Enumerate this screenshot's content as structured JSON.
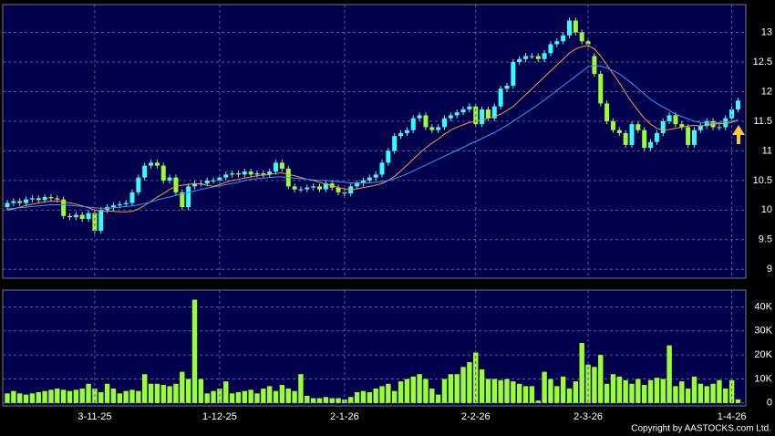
{
  "chart_data": [
    {
      "type": "candlestick",
      "ylim": [
        8.85,
        13.47
      ],
      "yticks": [
        9,
        9.5,
        10,
        10.5,
        11,
        11.5,
        12,
        12.5,
        13
      ],
      "grid": true,
      "up_color": "#33ffff",
      "down_color": "#99ff33",
      "open": [
        10.05,
        10.12,
        10.15,
        10.12,
        10.18,
        10.2,
        10.17,
        10.22,
        10.2,
        10.18,
        9.9,
        9.88,
        9.92,
        9.85,
        9.95,
        9.65,
        10.0,
        10.05,
        10.08,
        10.1,
        10.12,
        10.3,
        10.55,
        10.75,
        10.8,
        10.75,
        10.5,
        10.55,
        10.3,
        10.05,
        10.4,
        10.45,
        10.45,
        10.5,
        10.5,
        10.55,
        10.6,
        10.62,
        10.6,
        10.65,
        10.6,
        10.62,
        10.6,
        10.65,
        10.8,
        10.7,
        10.4,
        10.35,
        10.35,
        10.38,
        10.4,
        10.35,
        10.45,
        10.38,
        10.3,
        10.28,
        10.4,
        10.45,
        10.5,
        10.55,
        10.6,
        10.8,
        11.0,
        11.25,
        11.3,
        11.35,
        11.55,
        11.6,
        11.4,
        11.35,
        11.4,
        11.55,
        11.6,
        11.65,
        11.7,
        11.75,
        11.45,
        11.7,
        11.55,
        11.75,
        12.05,
        12.1,
        12.5,
        12.55,
        12.6,
        12.6,
        12.55,
        12.65,
        12.8,
        12.85,
        12.95,
        13.2,
        13.0,
        12.85,
        12.6,
        12.3,
        11.8,
        11.5,
        11.35,
        11.3,
        11.1,
        11.45,
        11.35,
        11.05,
        11.15,
        11.3,
        11.5,
        11.6,
        11.45,
        11.4,
        11.1,
        11.35,
        11.42,
        11.5,
        11.4,
        11.4,
        11.55,
        11.7
      ],
      "high": [
        10.17,
        10.2,
        10.2,
        10.23,
        10.25,
        10.25,
        10.27,
        10.27,
        10.25,
        10.23,
        9.95,
        9.97,
        9.97,
        10.0,
        10.0,
        10.05,
        10.1,
        10.13,
        10.15,
        10.17,
        10.35,
        10.6,
        10.8,
        10.85,
        10.85,
        10.8,
        10.6,
        10.6,
        10.35,
        10.45,
        10.5,
        10.5,
        10.55,
        10.55,
        10.6,
        10.65,
        10.67,
        10.67,
        10.7,
        10.7,
        10.67,
        10.67,
        10.7,
        10.85,
        10.85,
        10.75,
        10.45,
        10.4,
        10.43,
        10.45,
        10.45,
        10.5,
        10.5,
        10.43,
        10.35,
        10.45,
        10.5,
        10.55,
        10.6,
        10.65,
        10.85,
        11.05,
        11.3,
        11.35,
        11.4,
        11.6,
        11.65,
        11.65,
        11.45,
        11.45,
        11.6,
        11.65,
        11.7,
        11.75,
        11.8,
        11.8,
        11.75,
        11.75,
        11.8,
        12.1,
        12.15,
        12.55,
        12.6,
        12.65,
        12.65,
        12.65,
        12.7,
        12.85,
        12.9,
        13.0,
        13.25,
        13.25,
        13.05,
        12.9,
        12.65,
        12.35,
        11.85,
        11.55,
        11.4,
        11.35,
        11.5,
        11.5,
        11.4,
        11.2,
        11.35,
        11.55,
        11.65,
        11.65,
        11.5,
        11.45,
        11.4,
        11.47,
        11.55,
        11.55,
        11.45,
        11.6,
        11.75,
        11.9
      ],
      "low": [
        10.0,
        10.07,
        10.07,
        10.07,
        10.13,
        10.12,
        10.12,
        10.15,
        10.13,
        9.85,
        9.83,
        9.83,
        9.8,
        9.8,
        9.6,
        9.6,
        9.95,
        10.0,
        10.03,
        10.05,
        10.07,
        10.25,
        10.5,
        10.7,
        10.7,
        10.45,
        10.45,
        10.25,
        10.0,
        10.0,
        10.35,
        10.4,
        10.4,
        10.45,
        10.45,
        10.5,
        10.55,
        10.55,
        10.55,
        10.55,
        10.55,
        10.55,
        10.55,
        10.6,
        10.65,
        10.35,
        10.3,
        10.3,
        10.3,
        10.33,
        10.3,
        10.3,
        10.33,
        10.25,
        10.23,
        10.23,
        10.35,
        10.4,
        10.45,
        10.5,
        10.55,
        10.75,
        10.95,
        11.2,
        11.25,
        11.3,
        11.5,
        11.35,
        11.3,
        11.3,
        11.35,
        11.5,
        11.55,
        11.6,
        11.65,
        11.4,
        11.4,
        11.5,
        11.5,
        11.7,
        12.0,
        12.05,
        12.45,
        12.5,
        12.55,
        12.5,
        12.5,
        12.6,
        12.75,
        12.8,
        12.9,
        12.95,
        12.8,
        12.75,
        12.25,
        11.75,
        11.45,
        11.3,
        11.25,
        11.05,
        11.05,
        11.3,
        11.0,
        11.0,
        11.1,
        11.25,
        11.45,
        11.4,
        11.35,
        11.05,
        11.05,
        11.3,
        11.37,
        11.35,
        11.35,
        11.35,
        11.5,
        11.65
      ],
      "close": [
        10.12,
        10.15,
        10.12,
        10.18,
        10.2,
        10.17,
        10.22,
        10.2,
        10.18,
        9.9,
        9.88,
        9.92,
        9.85,
        9.95,
        9.65,
        10.0,
        10.05,
        10.08,
        10.1,
        10.12,
        10.3,
        10.55,
        10.75,
        10.8,
        10.75,
        10.5,
        10.55,
        10.3,
        10.05,
        10.4,
        10.45,
        10.45,
        10.5,
        10.5,
        10.55,
        10.6,
        10.62,
        10.6,
        10.65,
        10.6,
        10.62,
        10.6,
        10.65,
        10.8,
        10.7,
        10.4,
        10.35,
        10.35,
        10.38,
        10.4,
        10.35,
        10.45,
        10.38,
        10.3,
        10.28,
        10.4,
        10.45,
        10.5,
        10.55,
        10.6,
        10.8,
        11.0,
        11.25,
        11.3,
        11.35,
        11.55,
        11.6,
        11.4,
        11.35,
        11.4,
        11.55,
        11.6,
        11.65,
        11.7,
        11.75,
        11.45,
        11.7,
        11.55,
        11.75,
        12.05,
        12.1,
        12.5,
        12.55,
        12.6,
        12.6,
        12.55,
        12.65,
        12.8,
        12.85,
        12.95,
        13.2,
        13.0,
        12.85,
        12.8,
        12.3,
        11.8,
        11.5,
        11.35,
        11.3,
        11.1,
        11.45,
        11.35,
        11.05,
        11.15,
        11.3,
        11.5,
        11.6,
        11.45,
        11.4,
        11.1,
        11.35,
        11.42,
        11.5,
        11.4,
        11.4,
        11.55,
        11.7,
        11.85
      ],
      "lines": [
        {
          "color": "#ff9933",
          "values": [
            10.0,
            10.02,
            10.05,
            10.08,
            10.1,
            10.12,
            10.14,
            10.15,
            10.15,
            10.14,
            10.12,
            10.1,
            10.07,
            10.04,
            10.0,
            9.98,
            9.98,
            9.98,
            9.97,
            9.97,
            9.98,
            10.02,
            10.08,
            10.15,
            10.22,
            10.28,
            10.35,
            10.4,
            10.42,
            10.43,
            10.45,
            10.44,
            10.42,
            10.4,
            10.43,
            10.47,
            10.5,
            10.52,
            10.54,
            10.56,
            10.58,
            10.59,
            10.6,
            10.62,
            10.63,
            10.6,
            10.58,
            10.55,
            10.52,
            10.5,
            10.47,
            10.44,
            10.41,
            10.38,
            10.36,
            10.35,
            10.36,
            10.38,
            10.4,
            10.42,
            10.45,
            10.5,
            10.57,
            10.66,
            10.76,
            10.86,
            10.96,
            11.05,
            11.13,
            11.2,
            11.28,
            11.35,
            11.4,
            11.44,
            11.48,
            11.5,
            11.53,
            11.55,
            11.58,
            11.62,
            11.68,
            11.75,
            11.85,
            11.95,
            12.05,
            12.15,
            12.25,
            12.35,
            12.45,
            12.55,
            12.65,
            12.72,
            12.76,
            12.78,
            12.72,
            12.6,
            12.45,
            12.3,
            12.15,
            11.98,
            11.82,
            11.68,
            11.55,
            11.45,
            11.38,
            11.35,
            11.36,
            11.38,
            11.4,
            11.42,
            11.43,
            11.42,
            11.43,
            11.45,
            11.46,
            11.46,
            11.48,
            11.52
          ]
        },
        {
          "color": "#3399ff",
          "values": [
            10.02,
            10.03,
            10.04,
            10.05,
            10.06,
            10.07,
            10.08,
            10.09,
            10.09,
            10.09,
            10.08,
            10.07,
            10.06,
            10.05,
            10.04,
            10.03,
            10.03,
            10.04,
            10.05,
            10.06,
            10.07,
            10.09,
            10.11,
            10.14,
            10.17,
            10.2,
            10.22,
            10.25,
            10.27,
            10.3,
            10.32,
            10.35,
            10.37,
            10.39,
            10.41,
            10.43,
            10.45,
            10.47,
            10.5,
            10.52,
            10.53,
            10.54,
            10.55,
            10.56,
            10.56,
            10.55,
            10.54,
            10.53,
            10.52,
            10.51,
            10.5,
            10.5,
            10.49,
            10.48,
            10.47,
            10.46,
            10.46,
            10.46,
            10.46,
            10.47,
            10.48,
            10.5,
            10.53,
            10.57,
            10.61,
            10.66,
            10.71,
            10.76,
            10.81,
            10.86,
            10.91,
            10.96,
            11.01,
            11.06,
            11.11,
            11.16,
            11.21,
            11.26,
            11.31,
            11.37,
            11.43,
            11.5,
            11.57,
            11.64,
            11.71,
            11.78,
            11.86,
            11.94,
            12.02,
            12.1,
            12.18,
            12.26,
            12.34,
            12.42,
            12.44,
            12.43,
            12.4,
            12.35,
            12.3,
            12.22,
            12.14,
            12.05,
            11.96,
            11.87,
            11.8,
            11.74,
            11.68,
            11.62,
            11.58,
            11.54,
            11.5,
            11.48,
            11.47,
            11.47,
            11.48,
            11.49,
            11.5,
            11.52
          ]
        }
      ]
    },
    {
      "type": "bar",
      "color": "#99ff33",
      "ylim": [
        -1200,
        47000
      ],
      "yticks": [
        0,
        {
          "value": 10000,
          "label": "10K"
        },
        {
          "value": 20000,
          "label": "20K"
        },
        {
          "value": 30000,
          "label": "30K"
        },
        {
          "value": 40000,
          "label": "40K"
        }
      ],
      "grid": true,
      "categories": [
        null,
        null,
        null,
        null,
        null,
        null,
        null,
        null,
        null,
        null,
        null,
        null,
        null,
        null,
        "3-11-25",
        null,
        null,
        null,
        null,
        null,
        null,
        null,
        null,
        null,
        null,
        null,
        null,
        null,
        null,
        null,
        null,
        null,
        null,
        null,
        "1-12-25",
        null,
        null,
        null,
        null,
        null,
        null,
        null,
        null,
        null,
        null,
        null,
        null,
        null,
        null,
        null,
        null,
        null,
        null,
        null,
        "2-1-26",
        null,
        null,
        null,
        null,
        null,
        null,
        null,
        null,
        null,
        null,
        null,
        null,
        null,
        null,
        null,
        null,
        null,
        null,
        null,
        null,
        "2-2-26",
        null,
        null,
        null,
        null,
        null,
        null,
        null,
        null,
        null,
        null,
        null,
        null,
        null,
        null,
        null,
        null,
        null,
        "2-3-26",
        null,
        null,
        null,
        null,
        null,
        null,
        null,
        null,
        null,
        null,
        null,
        null,
        null,
        null,
        null,
        null,
        null,
        null,
        null,
        null,
        null,
        null,
        "1-4-26",
        null
      ],
      "values": [
        4000,
        5000,
        4000,
        3500,
        4000,
        4500,
        5000,
        5500,
        6000,
        5500,
        5000,
        5500,
        6000,
        8000,
        6000,
        4500,
        8000,
        6000,
        4000,
        5000,
        5500,
        5000,
        12000,
        8000,
        8000,
        7500,
        7000,
        8000,
        13000,
        10000,
        43000,
        10000,
        4000,
        5000,
        6000,
        9000,
        4000,
        4500,
        5000,
        5500,
        4000,
        6000,
        7000,
        5000,
        7500,
        6000,
        5000,
        12000,
        3000,
        2000,
        2000,
        2500,
        2000,
        2000,
        1500,
        2500,
        4500,
        5000,
        4500,
        6000,
        7000,
        8000,
        5000,
        9000,
        10000,
        11000,
        12000,
        10000,
        6000,
        3500,
        10000,
        12000,
        12000,
        15000,
        17000,
        21000,
        14000,
        10000,
        10000,
        9500,
        10000,
        9000,
        8000,
        7000,
        7000,
        1000,
        13000,
        10000,
        7000,
        11000,
        6000,
        9000,
        25000,
        16000,
        15000,
        20000,
        8000,
        12000,
        11000,
        9500,
        8000,
        10000,
        7500,
        9500,
        10500,
        10000,
        24000,
        7000,
        9000,
        6000,
        11000,
        8000,
        7000,
        8000,
        9500,
        6000,
        9500,
        1500
      ]
    }
  ],
  "source": "Copyright by AASTOCKS.com Ltd."
}
